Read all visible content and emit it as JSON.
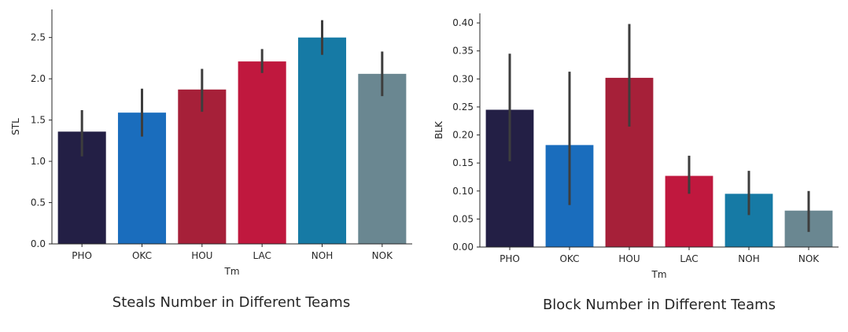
{
  "chart_data": [
    {
      "type": "bar",
      "title": "Steals Number in Different Teams",
      "xlabel": "Tm",
      "ylabel": "STL",
      "categories": [
        "PHO",
        "OKC",
        "HOU",
        "LAC",
        "NOH",
        "NOK"
      ],
      "values": [
        1.36,
        1.59,
        1.87,
        2.21,
        2.5,
        2.06
      ],
      "error_low": [
        1.06,
        1.3,
        1.6,
        2.07,
        2.29,
        1.79
      ],
      "error_high": [
        1.62,
        1.88,
        2.12,
        2.36,
        2.71,
        2.33
      ],
      "colors": [
        "#231f45",
        "#1a6dbd",
        "#a62039",
        "#c0183e",
        "#167aa5",
        "#6a8791"
      ],
      "yticks": [
        0.0,
        0.5,
        1.0,
        1.5,
        2.0,
        2.5
      ],
      "ytick_labels": [
        "0.0",
        "0.5",
        "1.0",
        "1.5",
        "2.0",
        "2.5"
      ],
      "ylim": [
        0,
        2.84
      ],
      "grid": false,
      "error_bar_color": "#3d3d3d"
    },
    {
      "type": "bar",
      "title": "Block Number in Different Teams",
      "xlabel": "Tm",
      "ylabel": "BLK",
      "categories": [
        "PHO",
        "OKC",
        "HOU",
        "LAC",
        "NOH",
        "NOK"
      ],
      "values": [
        0.245,
        0.182,
        0.302,
        0.127,
        0.095,
        0.065
      ],
      "error_low": [
        0.153,
        0.075,
        0.215,
        0.095,
        0.057,
        0.027
      ],
      "error_high": [
        0.345,
        0.313,
        0.398,
        0.163,
        0.136,
        0.1
      ],
      "colors": [
        "#231f45",
        "#1a6dbd",
        "#a62039",
        "#c0183e",
        "#167aa5",
        "#6a8791"
      ],
      "yticks": [
        0.0,
        0.05,
        0.1,
        0.15,
        0.2,
        0.25,
        0.3,
        0.35,
        0.4
      ],
      "ytick_labels": [
        "0.00",
        "0.05",
        "0.10",
        "0.15",
        "0.20",
        "0.25",
        "0.30",
        "0.35",
        "0.40"
      ],
      "ylim": [
        0,
        0.417
      ],
      "grid": false,
      "error_bar_color": "#3d3d3d"
    }
  ]
}
